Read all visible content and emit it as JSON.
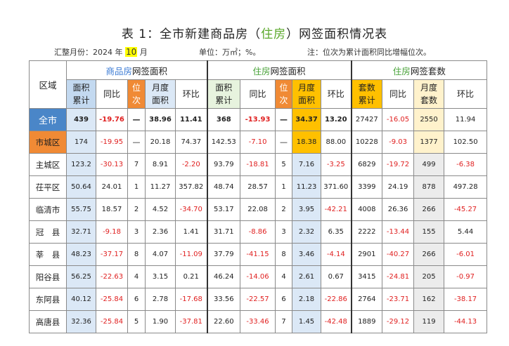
{
  "title": {
    "prefix": "表 1：全市新建商品房（",
    "highlight": "住房",
    "suffix": "）网签面积情况表"
  },
  "meta": {
    "month_prefix": "汇整月份：2024 年 ",
    "month_value": "10",
    "month_suffix": " 月",
    "unit": "单位：万㎡；%。",
    "note": "注：位次为累计面积同比增幅位次。"
  },
  "header": {
    "region": "区域",
    "group1_colored": "商品房",
    "group1_rest": "网签面积",
    "group2_colored": "住房",
    "group2_rest": "网签面积",
    "group3_colored": "住房",
    "group3_rest": "网签套数",
    "cols": [
      [
        "面积",
        "累计"
      ],
      [
        "同比"
      ],
      [
        "位",
        "次"
      ],
      [
        "月度",
        "面积"
      ],
      [
        "环比"
      ],
      [
        "面积",
        "累计"
      ],
      [
        "同比"
      ],
      [
        "位",
        "次"
      ],
      [
        "月度",
        "面积"
      ],
      [
        "环比"
      ],
      [
        "套数",
        "累计"
      ],
      [
        "同比"
      ],
      [
        "月度",
        "套数"
      ],
      [
        "环比"
      ]
    ]
  },
  "rows": [
    {
      "region": "全市",
      "values": [
        "439",
        "-19.76",
        "—",
        "38.96",
        "11.41",
        "368",
        "-13.93",
        "—",
        "34.37",
        "13.20",
        "27427",
        "-16.05",
        "2550",
        "11.94"
      ]
    },
    {
      "region": "市城区",
      "values": [
        "174",
        "-19.95",
        "—",
        "20.18",
        "74.37",
        "142.53",
        "-7.10",
        "—",
        "18.38",
        "88.00",
        "10228",
        "-9.03",
        "1377",
        "102.50"
      ]
    },
    {
      "region": "主城区",
      "values": [
        "123.2",
        "-30.13",
        "7",
        "8.91",
        "-2.20",
        "93.79",
        "-18.81",
        "5",
        "7.16",
        "-3.25",
        "6829",
        "-19.72",
        "499",
        "-6.38"
      ]
    },
    {
      "region": "茌平区",
      "values": [
        "50.64",
        "24.01",
        "1",
        "11.27",
        "357.82",
        "48.74",
        "28.57",
        "1",
        "11.23",
        "371.60",
        "3399",
        "24.19",
        "878",
        "497.28"
      ]
    },
    {
      "region": "临清市",
      "values": [
        "55.75",
        "18.57",
        "2",
        "4.52",
        "-34.70",
        "53.17",
        "22.08",
        "2",
        "3.95",
        "-42.21",
        "4008",
        "26.36",
        "266",
        "-45.27"
      ]
    },
    {
      "region": "冠　县",
      "values": [
        "32.71",
        "-9.18",
        "3",
        "2.36",
        "1.41",
        "31.71",
        "-8.86",
        "3",
        "2.32",
        "6.35",
        "2222",
        "-13.44",
        "155",
        "5.44"
      ]
    },
    {
      "region": "莘　县",
      "values": [
        "48.23",
        "-37.17",
        "8",
        "4.07",
        "-11.09",
        "37.79",
        "-41.15",
        "8",
        "3.46",
        "-4.14",
        "2901",
        "-40.27",
        "266",
        "-6.01"
      ]
    },
    {
      "region": "阳谷县",
      "values": [
        "56.25",
        "-22.63",
        "4",
        "3.15",
        "0.21",
        "46.24",
        "-14.06",
        "4",
        "2.61",
        "0.67",
        "3415",
        "-24.81",
        "205",
        "-0.97"
      ]
    },
    {
      "region": "东阿县",
      "values": [
        "40.12",
        "-25.84",
        "6",
        "2.78",
        "-17.68",
        "33.56",
        "-22.57",
        "6",
        "2.18",
        "-22.86",
        "2764",
        "-23.71",
        "162",
        "-38.17"
      ]
    },
    {
      "region": "高唐县",
      "values": [
        "32.36",
        "-25.84",
        "5",
        "1.90",
        "-37.81",
        "22.60",
        "-33.46",
        "7",
        "1.45",
        "-42.48",
        "1889",
        "-29.12",
        "119",
        "-44.13"
      ]
    }
  ]
}
